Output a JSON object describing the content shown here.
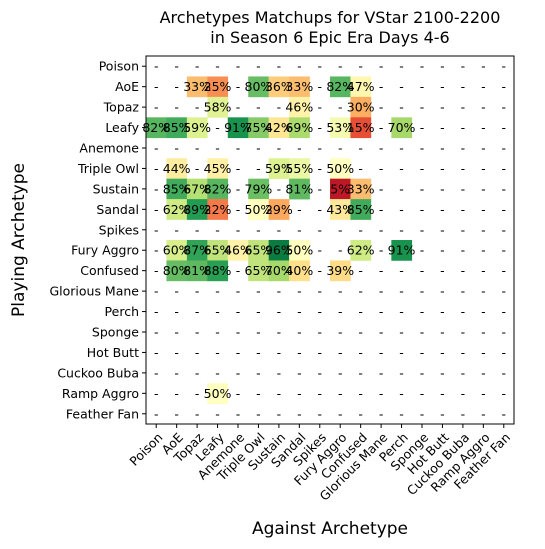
{
  "chart_data": {
    "type": "heatmap",
    "title_lines": [
      "Archetypes Matchups for VStar 2100-2200",
      "in Season 6 Epic Era Days 4-6"
    ],
    "xlabel": "Against Archetype",
    "ylabel": "Playing Archetype",
    "categories": [
      "Poison",
      "AoE",
      "Topaz",
      "Leafy",
      "Anemone",
      "Triple Owl",
      "Sustain",
      "Sandal",
      "Spikes",
      "Fury Aggro",
      "Confused",
      "Glorious Mane",
      "Perch",
      "Sponge",
      "Hot Butt",
      "Cuckoo Buba",
      "Ramp Aggro",
      "Feather Fan"
    ],
    "empty_label": "-",
    "matrix": [
      [
        null,
        null,
        null,
        null,
        null,
        null,
        null,
        null,
        null,
        null,
        null,
        null,
        null,
        null,
        null,
        null,
        null,
        null
      ],
      [
        null,
        null,
        33,
        25,
        null,
        80,
        36,
        33,
        null,
        82,
        47,
        null,
        null,
        null,
        null,
        null,
        null,
        null
      ],
      [
        null,
        null,
        null,
        58,
        null,
        null,
        null,
        46,
        null,
        null,
        30,
        null,
        null,
        null,
        null,
        null,
        null,
        null
      ],
      [
        82,
        85,
        59,
        null,
        91,
        75,
        42,
        69,
        null,
        53,
        15,
        null,
        70,
        null,
        null,
        null,
        null,
        null
      ],
      [
        null,
        null,
        null,
        null,
        null,
        null,
        null,
        null,
        null,
        null,
        null,
        null,
        null,
        null,
        null,
        null,
        null,
        null
      ],
      [
        null,
        44,
        null,
        45,
        null,
        null,
        59,
        55,
        null,
        50,
        null,
        null,
        null,
        null,
        null,
        null,
        null,
        null
      ],
      [
        null,
        85,
        67,
        82,
        null,
        79,
        null,
        81,
        null,
        5,
        33,
        null,
        null,
        null,
        null,
        null,
        null,
        null
      ],
      [
        null,
        62,
        89,
        22,
        null,
        50,
        29,
        null,
        null,
        43,
        85,
        null,
        null,
        null,
        null,
        null,
        null,
        null
      ],
      [
        null,
        null,
        null,
        null,
        null,
        null,
        null,
        null,
        null,
        null,
        null,
        null,
        null,
        null,
        null,
        null,
        null,
        null
      ],
      [
        null,
        60,
        87,
        65,
        46,
        65,
        96,
        50,
        null,
        null,
        62,
        null,
        91,
        null,
        null,
        null,
        null,
        null
      ],
      [
        null,
        80,
        81,
        88,
        null,
        65,
        70,
        40,
        null,
        39,
        null,
        null,
        null,
        null,
        null,
        null,
        null,
        null
      ],
      [
        null,
        null,
        null,
        null,
        null,
        null,
        null,
        null,
        null,
        null,
        null,
        null,
        null,
        null,
        null,
        null,
        null,
        null
      ],
      [
        null,
        null,
        null,
        null,
        null,
        null,
        null,
        null,
        null,
        null,
        null,
        null,
        null,
        null,
        null,
        null,
        null,
        null
      ],
      [
        null,
        null,
        null,
        null,
        null,
        null,
        null,
        null,
        null,
        null,
        null,
        null,
        null,
        null,
        null,
        null,
        null,
        null
      ],
      [
        null,
        null,
        null,
        null,
        null,
        null,
        null,
        null,
        null,
        null,
        null,
        null,
        null,
        null,
        null,
        null,
        null,
        null
      ],
      [
        null,
        null,
        null,
        null,
        null,
        null,
        null,
        null,
        null,
        null,
        null,
        null,
        null,
        null,
        null,
        null,
        null,
        null
      ],
      [
        null,
        null,
        null,
        50,
        null,
        null,
        null,
        null,
        null,
        null,
        null,
        null,
        null,
        null,
        null,
        null,
        null,
        null
      ],
      [
        null,
        null,
        null,
        null,
        null,
        null,
        null,
        null,
        null,
        null,
        null,
        null,
        null,
        null,
        null,
        null,
        null,
        null
      ]
    ],
    "value_format": "percent",
    "vrange": [
      0,
      100
    ],
    "colormap": "RdYlGn",
    "grid": false
  }
}
